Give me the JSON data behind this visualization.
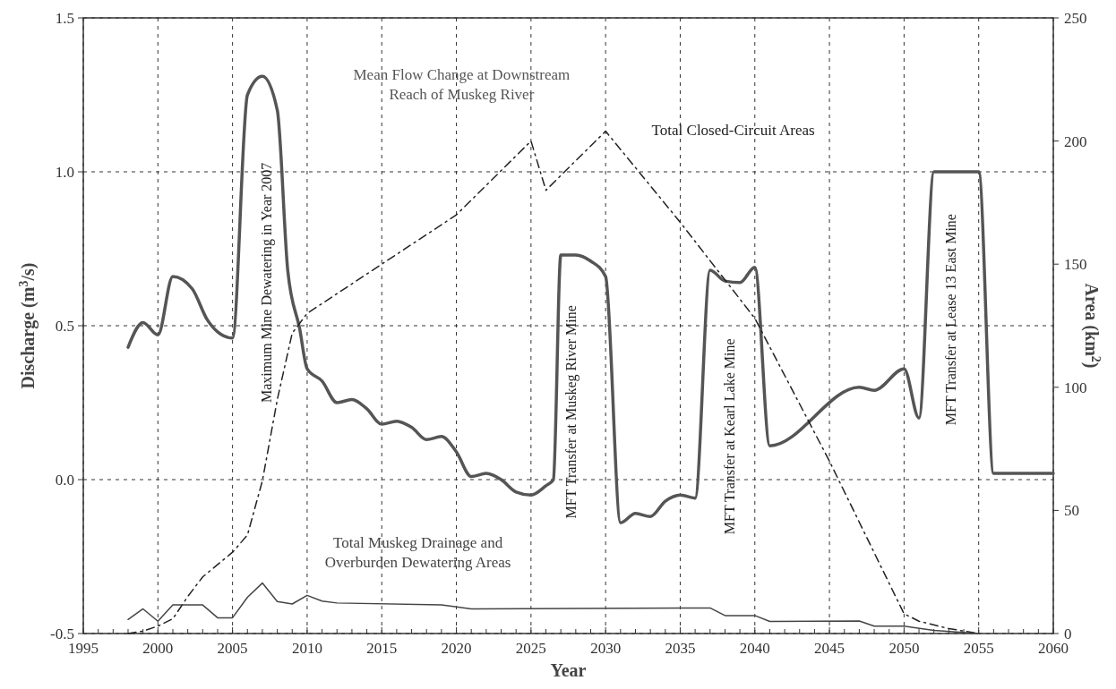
{
  "chart_data": {
    "type": "line",
    "xlabel": "Year",
    "ylabel": "Discharge (m$^{3}$/s)",
    "y2label": "Area (km$^{2}$)",
    "xlim": [
      1995,
      2060
    ],
    "xticks": [
      1995,
      {
        "value": 1996,
        "label": null
      },
      {
        "value": 1997,
        "label": null
      },
      {
        "value": 1998,
        "label": null
      },
      {
        "value": 1999,
        "label": null
      },
      2000,
      {
        "value": 2001,
        "label": null
      },
      {
        "value": 2002,
        "label": null
      },
      {
        "value": 2003,
        "label": null
      },
      {
        "value": 2004,
        "label": null
      },
      2005,
      {
        "value": 2006,
        "label": null
      },
      {
        "value": 2007,
        "label": null
      },
      {
        "value": 2008,
        "label": null
      },
      {
        "value": 2009,
        "label": null
      },
      2010,
      {
        "value": 2011,
        "label": null
      },
      {
        "value": 2012,
        "label": null
      },
      {
        "value": 2013,
        "label": null
      },
      {
        "value": 2014,
        "label": null
      },
      2015,
      {
        "value": 2016,
        "label": null
      },
      {
        "value": 2017,
        "label": null
      },
      {
        "value": 2018,
        "label": null
      },
      {
        "value": 2019,
        "label": null
      },
      2020,
      {
        "value": 2021,
        "label": null
      },
      {
        "value": 2022,
        "label": null
      },
      {
        "value": 2023,
        "label": null
      },
      {
        "value": 2024,
        "label": null
      },
      2025,
      {
        "value": 2026,
        "label": null
      },
      {
        "value": 2027,
        "label": null
      },
      {
        "value": 2028,
        "label": null
      },
      {
        "value": 2029,
        "label": null
      },
      2030,
      {
        "value": 2031,
        "label": null
      },
      {
        "value": 2032,
        "label": null
      },
      {
        "value": 2033,
        "label": null
      },
      {
        "value": 2034,
        "label": null
      },
      2035,
      {
        "value": 2036,
        "label": null
      },
      {
        "value": 2037,
        "label": null
      },
      {
        "value": 2038,
        "label": null
      },
      {
        "value": 2039,
        "label": null
      },
      2040,
      {
        "value": 2041,
        "label": null
      },
      {
        "value": 2042,
        "label": null
      },
      {
        "value": 2043,
        "label": null
      },
      {
        "value": 2044,
        "label": null
      },
      2045,
      {
        "value": 2046,
        "label": null
      },
      {
        "value": 2047,
        "label": null
      },
      {
        "value": 2048,
        "label": null
      },
      {
        "value": 2049,
        "label": null
      },
      2050,
      {
        "value": 2051,
        "label": null
      },
      {
        "value": 2052,
        "label": null
      },
      {
        "value": 2053,
        "label": null
      },
      {
        "value": 2054,
        "label": null
      },
      2055,
      {
        "value": 2056,
        "label": null
      },
      {
        "value": 2057,
        "label": null
      },
      {
        "value": 2058,
        "label": null
      },
      {
        "value": 2059,
        "label": null
      },
      2060
    ],
    "ylim": [
      -0.5,
      1.5
    ],
    "yticks": [
      {
        "value": -0.5,
        "label": "-0.5"
      },
      {
        "value": 0,
        "label": "0.0"
      },
      {
        "value": 0.5,
        "label": "0.5"
      },
      {
        "value": 1,
        "label": "1.0"
      },
      {
        "value": 1.5,
        "label": "1.5"
      }
    ],
    "y2lim": [
      0,
      250
    ],
    "y2ticks": [
      0,
      50,
      100,
      150,
      200,
      250
    ],
    "grid": true,
    "marker": "none",
    "series": [
      {
        "name": "Mean Flow Change at Downstream Reach of Muskeg River",
        "color": "#555555",
        "line_style": "solid",
        "x": [
          1998,
          1999,
          2000,
          2001,
          2002.3,
          2003.3,
          2004,
          2005,
          2006,
          2007,
          2008,
          2008.7,
          2009.5,
          2010,
          2011,
          2012,
          2013,
          2014,
          2015,
          2016,
          2017,
          2018,
          2019,
          2020,
          2021,
          2022,
          2023,
          2024,
          2025,
          2026,
          2026.5,
          2027,
          2028,
          2029,
          2030,
          2031,
          2032,
          2033,
          2034,
          2035,
          2036,
          2037,
          2038,
          2039,
          2040,
          2041,
          2047,
          2048,
          2050,
          2051,
          2052,
          2055,
          2056,
          2060
        ],
        "values": [
          0.43,
          0.51,
          0.47,
          0.66,
          0.62,
          0.52,
          0.48,
          0.46,
          1.25,
          1.31,
          1.2,
          0.68,
          0.49,
          0.36,
          0.32,
          0.25,
          0.26,
          0.23,
          0.18,
          0.19,
          0.17,
          0.13,
          0.14,
          0.09,
          0.01,
          0.02,
          0.0,
          -0.04,
          -0.05,
          -0.02,
          0.0,
          0.73,
          0.73,
          0.71,
          0.66,
          -0.14,
          -0.11,
          -0.12,
          -0.07,
          -0.05,
          -0.06,
          0.68,
          0.645,
          0.64,
          0.69,
          0.11,
          0.3,
          0.29,
          0.36,
          0.2,
          1.0,
          1.0,
          0.02,
          0.02
        ]
      },
      {
        "name": "Total Closed-Circuit Areas",
        "color": "#222222",
        "line_style": "dashdot",
        "axis": "y2",
        "x": [
          1998,
          1999,
          2000,
          2001,
          2002,
          2003,
          2004,
          2005,
          2006,
          2007,
          2008,
          2009,
          2010,
          2015,
          2020,
          2025,
          2026,
          2030,
          2035,
          2040,
          2045,
          2050,
          2051,
          2053,
          2055
        ],
        "values": [
          0,
          1,
          3,
          6,
          15,
          23,
          28,
          33,
          40,
          62,
          95,
          122,
          130,
          150,
          170,
          200,
          180,
          204,
          167,
          128,
          70,
          8,
          5,
          2,
          0
        ]
      },
      {
        "name": "Total Muskeg Drainage and Overburden Dewatering Areas",
        "color": "#444444",
        "line_style": "solid",
        "axis": "y2",
        "x": [
          1998,
          1999,
          2000,
          2001,
          2003,
          2004,
          2005,
          2006,
          2007,
          2008,
          2009,
          2010,
          2011,
          2012,
          2019,
          2021,
          2037,
          2038,
          2040,
          2041,
          2047,
          2048,
          2050,
          2052,
          2055
        ],
        "values": [
          5.7,
          10,
          5,
          11.6,
          11.6,
          6.4,
          6.4,
          14.7,
          20.5,
          13,
          12,
          15.5,
          13.2,
          12.4,
          11.6,
          10,
          10.4,
          7.3,
          7.3,
          4.9,
          5.1,
          3,
          3,
          1.3,
          0
        ]
      }
    ],
    "annotations": [
      "Maximum Mine Dewatering in Year 2007",
      "MFT Transfer at Muskeg River Mine",
      "MFT Transfer  at Kearl Lake Mine",
      "MFT Transfer at Lease 13 East Mine"
    ]
  }
}
